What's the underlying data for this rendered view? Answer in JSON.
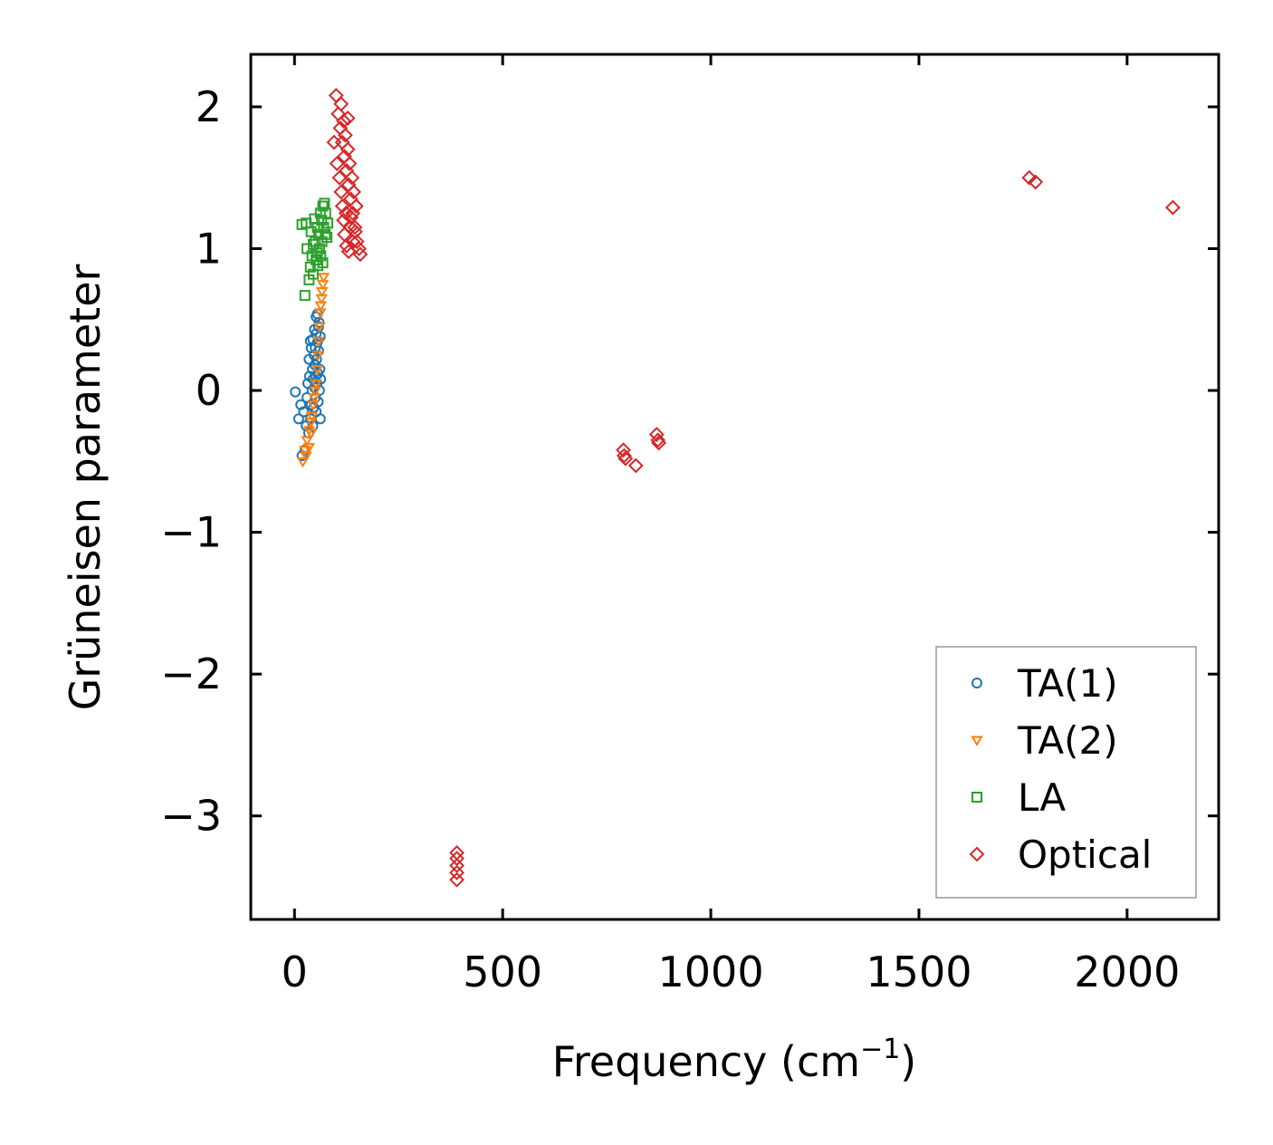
{
  "chart_data": {
    "type": "scatter",
    "title": "",
    "xlabel": "Frequency (cm",
    "xlabel_sup": "−1",
    "xlabel_close": ")",
    "ylabel": "Grüneisen parameter",
    "xlim": [
      -105,
      2220
    ],
    "ylim": [
      -3.73,
      2.37
    ],
    "xticks": [
      0,
      500,
      1000,
      1500,
      2000
    ],
    "xtick_labels": [
      "0",
      "500",
      "1000",
      "1500",
      "2000"
    ],
    "yticks": [
      -3,
      -2,
      -1,
      0,
      1,
      2
    ],
    "ytick_labels": [
      "−3",
      "−2",
      "−1",
      "0",
      "1",
      "2"
    ],
    "grid": false,
    "legend_position": "bottom-right",
    "series": [
      {
        "name": "TA(1)",
        "marker": "circle",
        "color": "#1f77b4",
        "points": [
          [
            2,
            -0.01
          ],
          [
            10,
            -0.2
          ],
          [
            15,
            -0.1
          ],
          [
            18,
            -0.46
          ],
          [
            22,
            -0.15
          ],
          [
            25,
            -0.42
          ],
          [
            28,
            -0.25
          ],
          [
            30,
            -0.05
          ],
          [
            32,
            0.05
          ],
          [
            34,
            -0.3
          ],
          [
            35,
            0.22
          ],
          [
            36,
            0.1
          ],
          [
            38,
            -0.2
          ],
          [
            40,
            0.3
          ],
          [
            40,
            -0.1
          ],
          [
            42,
            0.0
          ],
          [
            43,
            0.15
          ],
          [
            44,
            0.36
          ],
          [
            45,
            0.08
          ],
          [
            46,
            -0.12
          ],
          [
            47,
            0.25
          ],
          [
            48,
            0.02
          ],
          [
            48,
            0.43
          ],
          [
            49,
            0.18
          ],
          [
            50,
            -0.05
          ],
          [
            50,
            0.3
          ],
          [
            51,
            0.1
          ],
          [
            52,
            0.4
          ],
          [
            52,
            -0.15
          ],
          [
            53,
            0.22
          ],
          [
            54,
            0.05
          ],
          [
            55,
            0.34
          ],
          [
            55,
            0.54
          ],
          [
            56,
            0.12
          ],
          [
            57,
            -0.08
          ],
          [
            58,
            0.28
          ],
          [
            59,
            0.48
          ],
          [
            60,
            0.0
          ],
          [
            61,
            0.15
          ],
          [
            62,
            0.38
          ],
          [
            62,
            -0.2
          ],
          [
            63,
            0.08
          ],
          [
            38,
            0.35
          ],
          [
            44,
            -0.25
          ],
          [
            52,
            0.52
          ],
          [
            58,
            0.45
          ]
        ]
      },
      {
        "name": "TA(2)",
        "marker": "triangle-down",
        "color": "#ff7f0e",
        "points": [
          [
            20,
            -0.5
          ],
          [
            25,
            -0.42
          ],
          [
            30,
            -0.35
          ],
          [
            35,
            -0.28
          ],
          [
            40,
            -0.22
          ],
          [
            42,
            -0.18
          ],
          [
            45,
            -0.1
          ],
          [
            48,
            -0.05
          ],
          [
            50,
            0.0
          ],
          [
            52,
            0.05
          ],
          [
            55,
            0.15
          ],
          [
            56,
            0.25
          ],
          [
            58,
            0.35
          ],
          [
            60,
            0.45
          ],
          [
            62,
            0.55
          ],
          [
            63,
            0.6
          ],
          [
            65,
            0.65
          ],
          [
            66,
            0.7
          ],
          [
            68,
            0.75
          ],
          [
            70,
            0.8
          ],
          [
            35,
            -0.4
          ],
          [
            40,
            -0.3
          ],
          [
            28,
            -0.46
          ]
        ]
      },
      {
        "name": "LA",
        "marker": "square",
        "color": "#2ca02c",
        "points": [
          [
            18,
            1.17
          ],
          [
            25,
            0.67
          ],
          [
            28,
            1.18
          ],
          [
            30,
            1.0
          ],
          [
            35,
            0.78
          ],
          [
            38,
            0.87
          ],
          [
            40,
            1.12
          ],
          [
            42,
            0.95
          ],
          [
            45,
            0.82
          ],
          [
            48,
            1.21
          ],
          [
            50,
            1.05
          ],
          [
            52,
            0.92
          ],
          [
            55,
            1.15
          ],
          [
            56,
            0.88
          ],
          [
            58,
            1.1
          ],
          [
            60,
            1.0
          ],
          [
            62,
            1.25
          ],
          [
            63,
            0.95
          ],
          [
            65,
            1.2
          ],
          [
            66,
            1.05
          ],
          [
            68,
            1.3
          ],
          [
            70,
            1.15
          ],
          [
            72,
            1.32
          ],
          [
            74,
            1.1
          ],
          [
            75,
            1.25
          ],
          [
            78,
            1.08
          ],
          [
            80,
            1.18
          ],
          [
            45,
            1.03
          ],
          [
            55,
            0.97
          ],
          [
            68,
            0.9
          ]
        ]
      },
      {
        "name": "Optical",
        "marker": "diamond",
        "color": "#d62728",
        "points": [
          [
            100,
            2.08
          ],
          [
            105,
            1.95
          ],
          [
            110,
            1.85
          ],
          [
            112,
            2.02
          ],
          [
            115,
            1.75
          ],
          [
            118,
            1.9
          ],
          [
            120,
            1.65
          ],
          [
            122,
            1.8
          ],
          [
            125,
            1.55
          ],
          [
            128,
            1.7
          ],
          [
            130,
            1.45
          ],
          [
            132,
            1.6
          ],
          [
            135,
            1.35
          ],
          [
            138,
            1.5
          ],
          [
            140,
            1.25
          ],
          [
            142,
            1.4
          ],
          [
            145,
            1.15
          ],
          [
            148,
            1.3
          ],
          [
            150,
            1.05
          ],
          [
            155,
            1.0
          ],
          [
            158,
            0.96
          ],
          [
            102,
            1.6
          ],
          [
            108,
            1.5
          ],
          [
            115,
            1.3
          ],
          [
            118,
            1.2
          ],
          [
            120,
            1.1
          ],
          [
            125,
            1.02
          ],
          [
            130,
            0.98
          ],
          [
            135,
            1.15
          ],
          [
            140,
            1.05
          ],
          [
            128,
            1.92
          ],
          [
            95,
            1.75
          ],
          [
            112,
            1.4
          ],
          [
            124,
            1.25
          ],
          [
            136,
            1.22
          ],
          [
            146,
            1.12
          ],
          [
            390,
            -3.26
          ],
          [
            390,
            -3.3
          ],
          [
            390,
            -3.35
          ],
          [
            390,
            -3.4
          ],
          [
            390,
            -3.45
          ],
          [
            790,
            -0.42
          ],
          [
            792,
            -0.46
          ],
          [
            795,
            -0.48
          ],
          [
            820,
            -0.53
          ],
          [
            870,
            -0.31
          ],
          [
            873,
            -0.35
          ],
          [
            875,
            -0.37
          ],
          [
            1765,
            1.5
          ],
          [
            1780,
            1.47
          ],
          [
            2110,
            1.29
          ]
        ]
      }
    ]
  }
}
